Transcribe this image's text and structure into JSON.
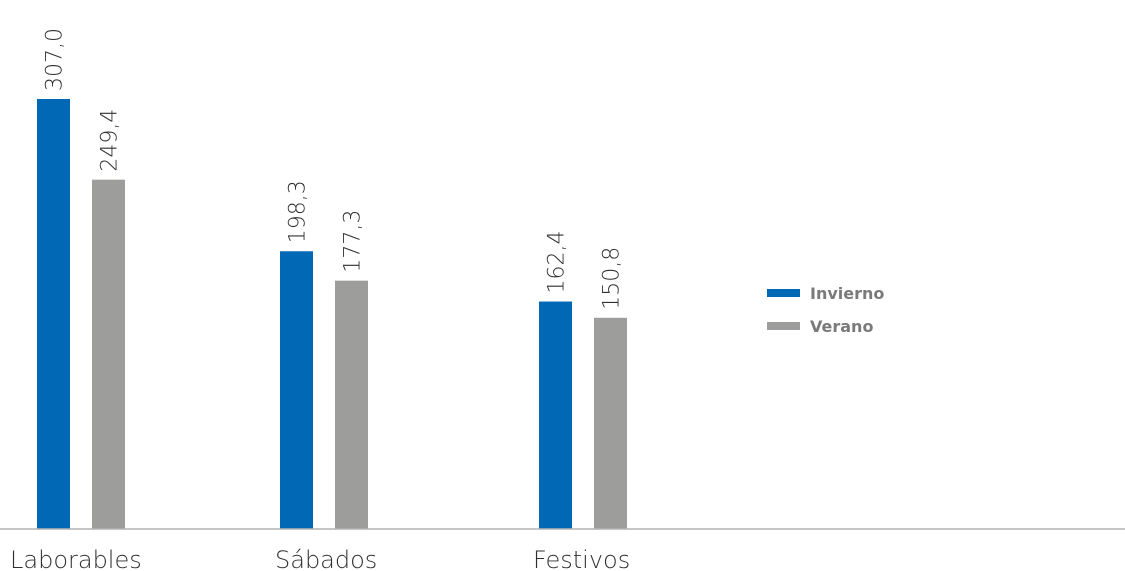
{
  "chart_data": {
    "type": "bar",
    "categories": [
      "Laborables",
      "Sábados",
      "Festivos"
    ],
    "series": [
      {
        "name": "Invierno",
        "color": "#0068b4",
        "values": [
          307.0,
          198.3,
          162.4
        ],
        "labels": [
          "307,0",
          "198,3",
          "162,4"
        ]
      },
      {
        "name": "Verano",
        "color": "#9d9d9c",
        "values": [
          249.4,
          177.3,
          150.8
        ],
        "labels": [
          "249,4",
          "177,3",
          "150,8"
        ]
      }
    ],
    "ylim": [
      0,
      307
    ],
    "grid": false,
    "legend_position": "right"
  }
}
